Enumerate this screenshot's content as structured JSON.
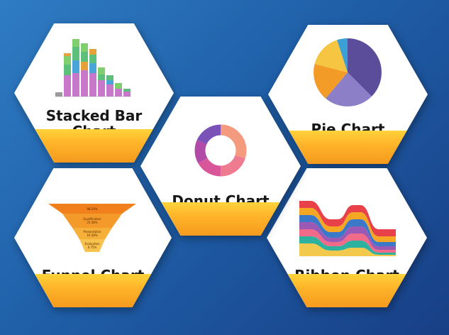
{
  "cards": {
    "stacked_bar": {
      "label_line1": "Stacked Bar",
      "label_line2": "Chart"
    },
    "pie": {
      "label": "Pie Chart"
    },
    "donut": {
      "label": "Donut Chart"
    },
    "funnel": {
      "label": "Funnel Chart",
      "stages": [
        {
          "name": "",
          "value": "98.29%"
        },
        {
          "name": "Qualification",
          "value": "25.58%"
        },
        {
          "name": "Presentation",
          "value": "16.58%"
        },
        {
          "name": "Evaluation",
          "value": "6.75%"
        }
      ]
    },
    "ribbon": {
      "label": "Ribbon Chart"
    }
  },
  "colors": {
    "band_top": "#ffd33a",
    "band_bottom": "#f59a1e",
    "background": "#1f5fa8"
  }
}
